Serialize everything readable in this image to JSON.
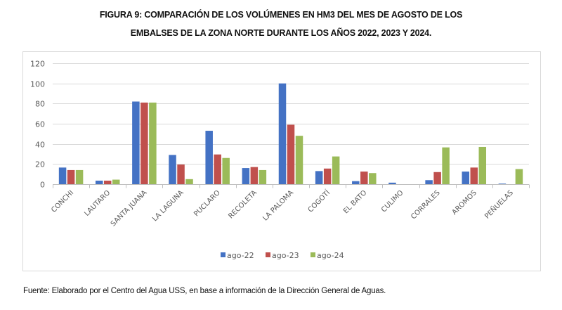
{
  "figure": {
    "title_line1": "FIGURA 9: COMPARACIÓN DE LOS VOLÚMENES EN HM3 DEL MES DE AGOSTO DE LOS",
    "title_line2": "EMBALSES DE LA ZONA NORTE DURANTE LOS AÑOS 2022, 2023 Y 2024.",
    "footer": "Fuente: Elaborado por el Centro del Agua USS, en base a información de la Dirección General de Aguas."
  },
  "chart_data": {
    "type": "bar",
    "title": "FIGURA 9: COMPARACIÓN DE LOS VOLÚMENES EN HM3 DEL MES DE AGOSTO DE LOS EMBALSES DE LA ZONA NORTE DURANTE LOS AÑOS 2022, 2023 Y 2024.",
    "xlabel": "",
    "ylabel": "",
    "ylim": [
      0,
      120
    ],
    "yticks": [
      0,
      20,
      40,
      60,
      80,
      100,
      120
    ],
    "grid": true,
    "legend_position": "bottom",
    "categories": [
      "CONCHI",
      "LAUTARO",
      "SANTA JUANA",
      "LA LAGUNA",
      "PUCLARO",
      "RECOLETA",
      "LA PALOMA",
      "COGOTÍ",
      "EL BATO",
      "CULIMO",
      "CORRALES",
      "AROMOS",
      "PEÑUELAS"
    ],
    "series": [
      {
        "name": "ago-22",
        "color": "#4472C4",
        "values": [
          16.5,
          3.5,
          82,
          29,
          53,
          16,
          100,
          13,
          3,
          1.5,
          4,
          12.5,
          0.5
        ]
      },
      {
        "name": "ago-23",
        "color": "#C0504D",
        "values": [
          14,
          3.5,
          81,
          19.5,
          29.5,
          17,
          59,
          15.5,
          12.5,
          0,
          12,
          16.5,
          0
        ]
      },
      {
        "name": "ago-24",
        "color": "#9BBB59",
        "values": [
          14,
          4.5,
          81,
          5,
          26,
          14,
          48,
          27.5,
          11,
          0,
          36.5,
          37,
          15
        ]
      }
    ]
  }
}
